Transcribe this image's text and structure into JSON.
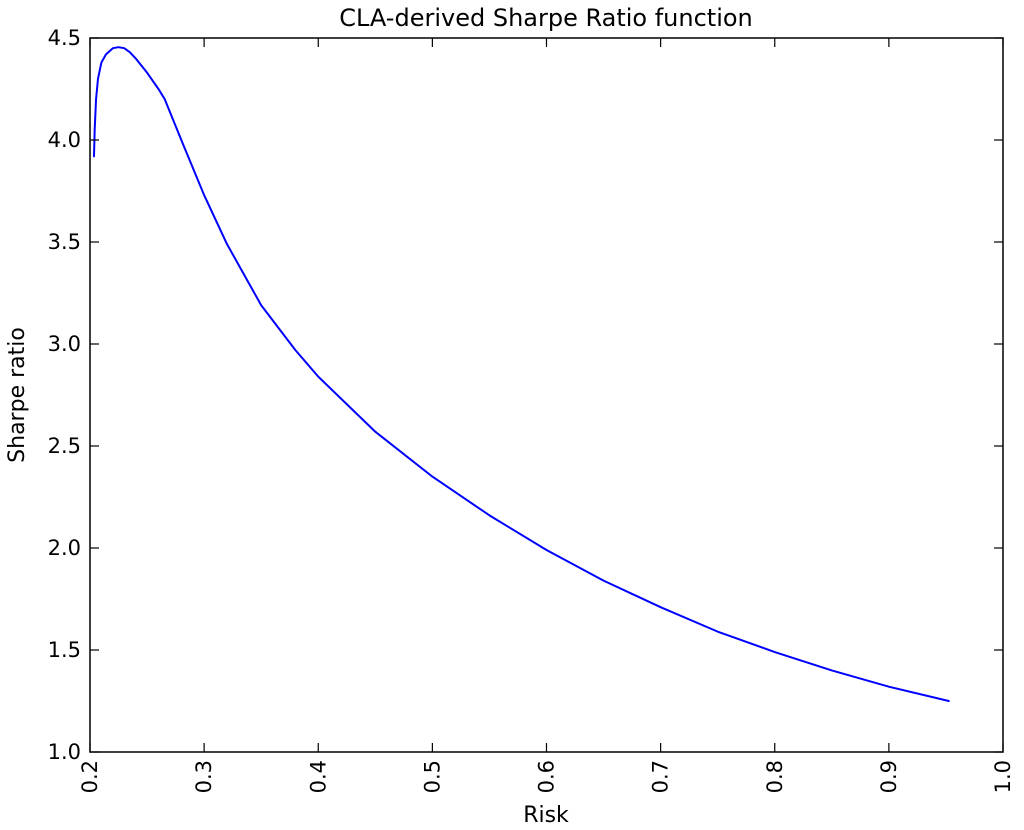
{
  "chart_data": {
    "type": "line",
    "title": "CLA-derived Sharpe Ratio function",
    "xlabel": "Risk",
    "ylabel": "Sharpe ratio",
    "xlim": [
      0.2,
      1.0
    ],
    "ylim": [
      1.0,
      4.5
    ],
    "xticks": [
      "0.2",
      "0.3",
      "0.4",
      "0.5",
      "0.6",
      "0.7",
      "0.8",
      "0.9",
      "1.0"
    ],
    "yticks": [
      "1.0",
      "1.5",
      "2.0",
      "2.5",
      "3.0",
      "3.5",
      "4.0",
      "4.5"
    ],
    "grid": false,
    "series": [
      {
        "color": "#0000ff",
        "x": [
          0.2035,
          0.2041,
          0.2053,
          0.207,
          0.21,
          0.214,
          0.22,
          0.225,
          0.23,
          0.235,
          0.24,
          0.25,
          0.26,
          0.2655,
          0.28,
          0.3,
          0.32,
          0.35,
          0.38,
          0.4,
          0.45,
          0.5,
          0.55,
          0.6,
          0.65,
          0.7,
          0.75,
          0.8,
          0.85,
          0.9,
          0.9525
        ],
        "y": [
          3.92,
          4.05,
          4.2,
          4.3,
          4.38,
          4.42,
          4.45,
          4.455,
          4.45,
          4.43,
          4.4,
          4.33,
          4.25,
          4.2,
          4.0,
          3.73,
          3.49,
          3.19,
          2.97,
          2.84,
          2.57,
          2.35,
          2.16,
          1.99,
          1.84,
          1.71,
          1.59,
          1.49,
          1.4,
          1.32,
          1.25
        ]
      }
    ]
  }
}
